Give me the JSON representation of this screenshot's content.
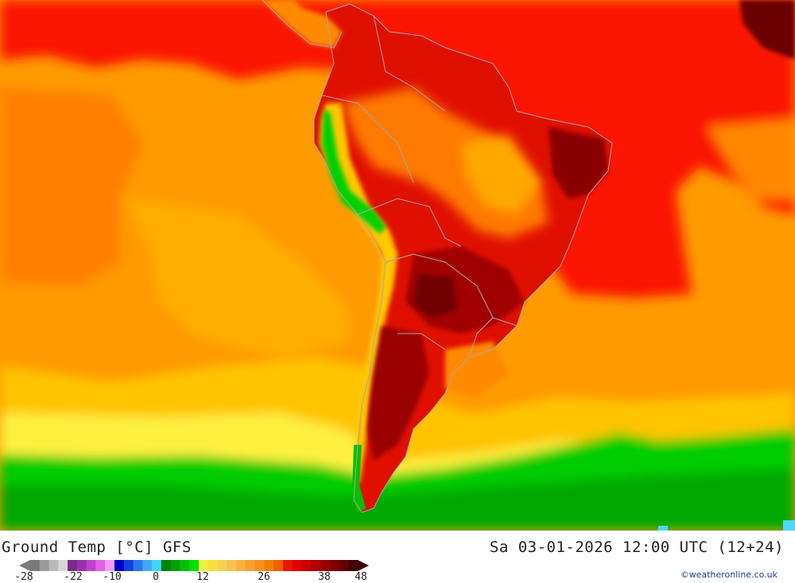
{
  "map": {
    "title": "Ground Temp [°C] GFS",
    "datetime": "Sa 03-01-2026 12:00 UTC (12+24)",
    "credit": "©weatheronline.co.uk",
    "region": "South America",
    "colors": {
      "ocean_warm": "#ff9a00",
      "ocean_hot": "#ff4400",
      "tropical_red": "#fa1200",
      "land_hot": "#cc0000",
      "land_very_hot": "#8e0000",
      "cool_yellow": "#ffd24d",
      "green_cold": "#00cc00",
      "border_gray": "#a8a8a8"
    }
  },
  "legend": {
    "colors": [
      "#7a7a7a",
      "#9a9a9a",
      "#b8b8b8",
      "#d6d6d6",
      "#7a2a8a",
      "#9a30b0",
      "#c040d0",
      "#e060e8",
      "#f0a0f0",
      "#0000cc",
      "#1040e0",
      "#2878f0",
      "#40a8f8",
      "#40d8f8",
      "#008000",
      "#00a000",
      "#00c000",
      "#00e000",
      "#f0f040",
      "#f8e040",
      "#f8d050",
      "#f8c050",
      "#f8b040",
      "#f8a030",
      "#f89020",
      "#f08000",
      "#f06000",
      "#e81800",
      "#e00000",
      "#c80000",
      "#b00000",
      "#980000",
      "#800000",
      "#600000",
      "#400000"
    ],
    "ticks": [
      "-28",
      "-22",
      "-10",
      "0",
      "12",
      "26",
      "38",
      "48"
    ]
  }
}
